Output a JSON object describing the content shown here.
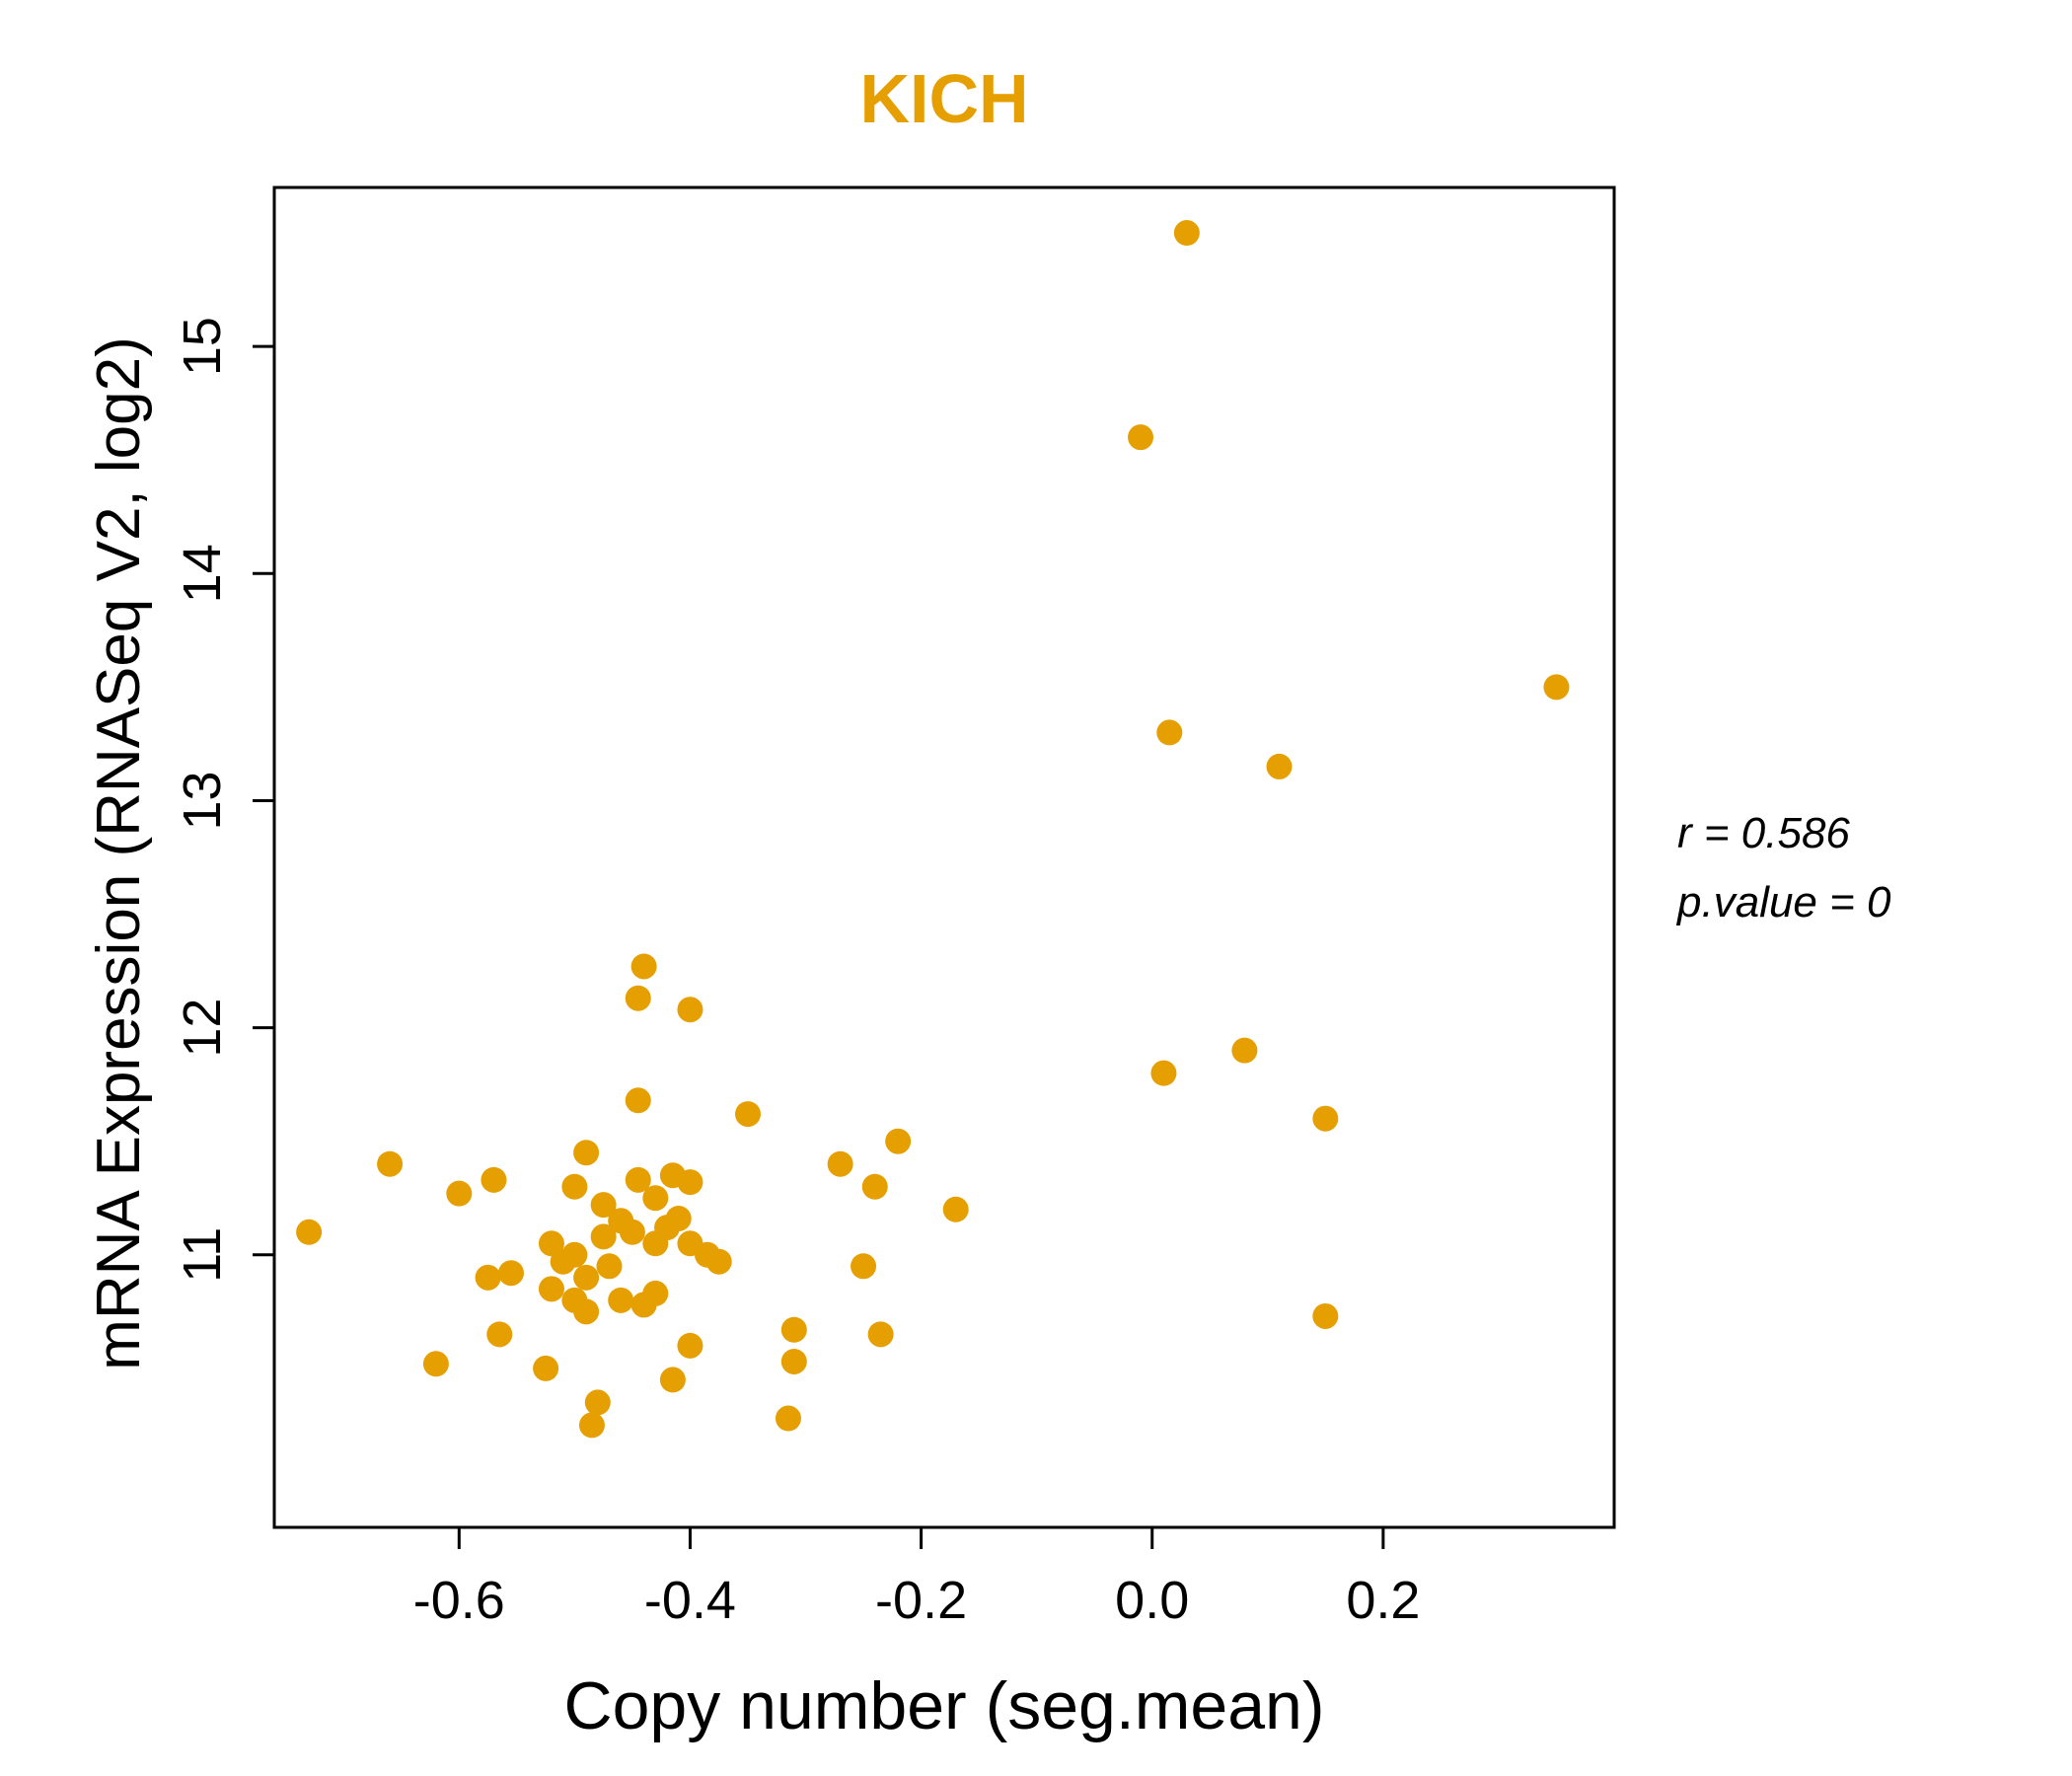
{
  "page": {
    "background": "#ffffff"
  },
  "header": {
    "title": "KICH",
    "title_color": "#E69F00"
  },
  "annotation": {
    "r_label": "r = 0.586",
    "p_label": "p.value = 0"
  },
  "chart_data": {
    "type": "scatter",
    "title": "KICH",
    "xlabel": "Copy number (seg.mean)",
    "ylabel": "mRNA Expression (RNASeq V2, log2)",
    "xlim": [
      -0.76,
      0.4
    ],
    "ylim": [
      9.8,
      15.7
    ],
    "x_ticks": [
      -0.6,
      -0.4,
      -0.2,
      0.0,
      0.2
    ],
    "y_ticks": [
      11,
      12,
      13,
      14,
      15
    ],
    "grid": false,
    "point_color": "#E69F00",
    "points": [
      [
        0.03,
        15.5
      ],
      [
        -0.01,
        14.6
      ],
      [
        0.015,
        13.3
      ],
      [
        0.11,
        13.15
      ],
      [
        0.35,
        13.5
      ],
      [
        0.08,
        11.9
      ],
      [
        0.01,
        11.8
      ],
      [
        0.15,
        11.6
      ],
      [
        0.15,
        10.73
      ],
      [
        -0.17,
        11.2
      ],
      [
        -0.44,
        12.27
      ],
      [
        -0.445,
        12.13
      ],
      [
        -0.4,
        12.08
      ],
      [
        -0.445,
        11.68
      ],
      [
        -0.35,
        11.62
      ],
      [
        -0.66,
        11.4
      ],
      [
        -0.49,
        11.45
      ],
      [
        -0.27,
        11.4
      ],
      [
        -0.22,
        11.5
      ],
      [
        -0.6,
        11.27
      ],
      [
        -0.57,
        11.33
      ],
      [
        -0.5,
        11.3
      ],
      [
        -0.475,
        11.22
      ],
      [
        -0.445,
        11.33
      ],
      [
        -0.43,
        11.25
      ],
      [
        -0.415,
        11.35
      ],
      [
        -0.4,
        11.32
      ],
      [
        -0.24,
        11.3
      ],
      [
        -0.52,
        11.05
      ],
      [
        -0.51,
        10.97
      ],
      [
        -0.5,
        11.0
      ],
      [
        -0.49,
        10.9
      ],
      [
        -0.475,
        11.08
      ],
      [
        -0.47,
        10.95
      ],
      [
        -0.46,
        11.15
      ],
      [
        -0.45,
        11.1
      ],
      [
        -0.43,
        11.05
      ],
      [
        -0.42,
        11.12
      ],
      [
        -0.41,
        11.16
      ],
      [
        -0.4,
        11.05
      ],
      [
        -0.385,
        11.0
      ],
      [
        -0.375,
        10.97
      ],
      [
        -0.575,
        10.9
      ],
      [
        -0.555,
        10.92
      ],
      [
        -0.52,
        10.85
      ],
      [
        -0.5,
        10.8
      ],
      [
        -0.49,
        10.75
      ],
      [
        -0.46,
        10.8
      ],
      [
        -0.44,
        10.78
      ],
      [
        -0.43,
        10.83
      ],
      [
        -0.25,
        10.95
      ],
      [
        -0.565,
        10.65
      ],
      [
        -0.4,
        10.6
      ],
      [
        -0.31,
        10.67
      ],
      [
        -0.235,
        10.65
      ],
      [
        -0.62,
        10.52
      ],
      [
        -0.525,
        10.5
      ],
      [
        -0.415,
        10.45
      ],
      [
        -0.31,
        10.53
      ],
      [
        -0.48,
        10.35
      ],
      [
        -0.485,
        10.25
      ],
      [
        -0.315,
        10.28
      ],
      [
        -0.73,
        11.1
      ]
    ]
  }
}
